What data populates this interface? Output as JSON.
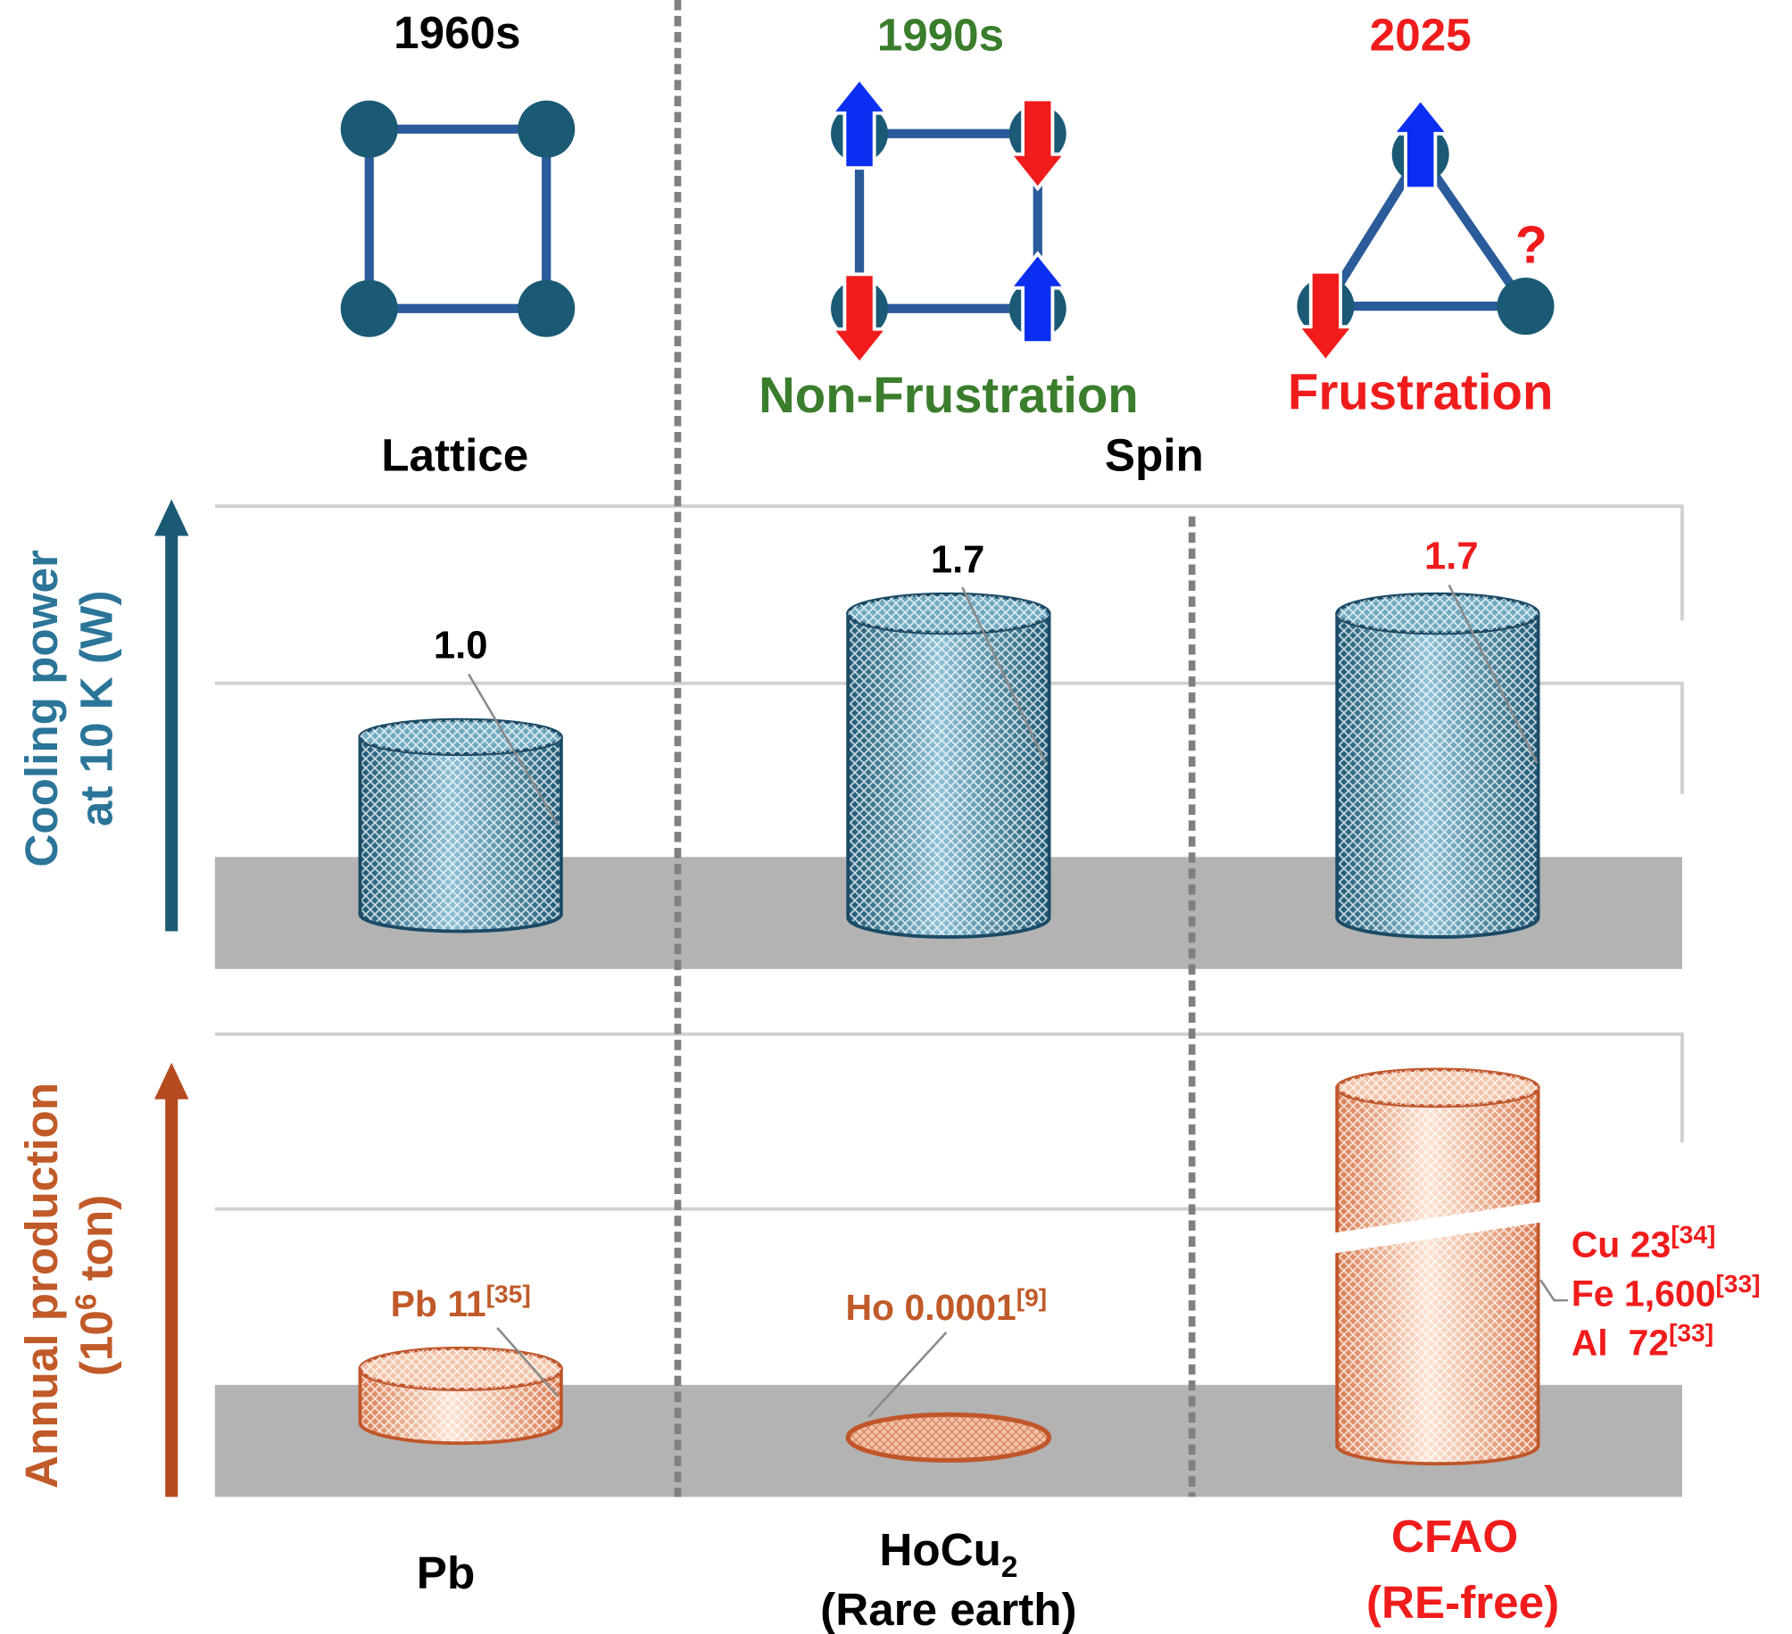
{
  "timeline": {
    "eras": [
      "1960s",
      "1990s",
      "2025"
    ],
    "categories": [
      "Lattice",
      "Spin"
    ],
    "spin_states": [
      "Non-Frustration",
      "Frustration"
    ],
    "unknown_spin": "?"
  },
  "cooling_power": {
    "axis_label": [
      "Cooling power",
      "at 10 K (W)"
    ],
    "values": [
      "1.0",
      "1.7",
      "1.7"
    ]
  },
  "production": {
    "axis_label": {
      "line1": "Annual production",
      "line2_prefix": "(10",
      "line2_exponent": "6",
      "line2_suffix": " ton)"
    },
    "items": [
      {
        "text": "Pb 11",
        "ref": "[35]"
      },
      {
        "text": "Ho 0.0001",
        "ref": "[9]"
      }
    ],
    "cfao_elements": [
      {
        "text": "Cu 23",
        "ref": "[34]"
      },
      {
        "text": "Fe 1,600",
        "ref": "[33]"
      },
      {
        "text": "Al  72",
        "ref": "[33]"
      }
    ]
  },
  "materials": [
    {
      "name": "Pb"
    },
    {
      "name": "HoCu",
      "subscript": "2",
      "note": "(Rare earth)"
    },
    {
      "name": "CFAO",
      "note": "(RE-free)"
    }
  ]
}
